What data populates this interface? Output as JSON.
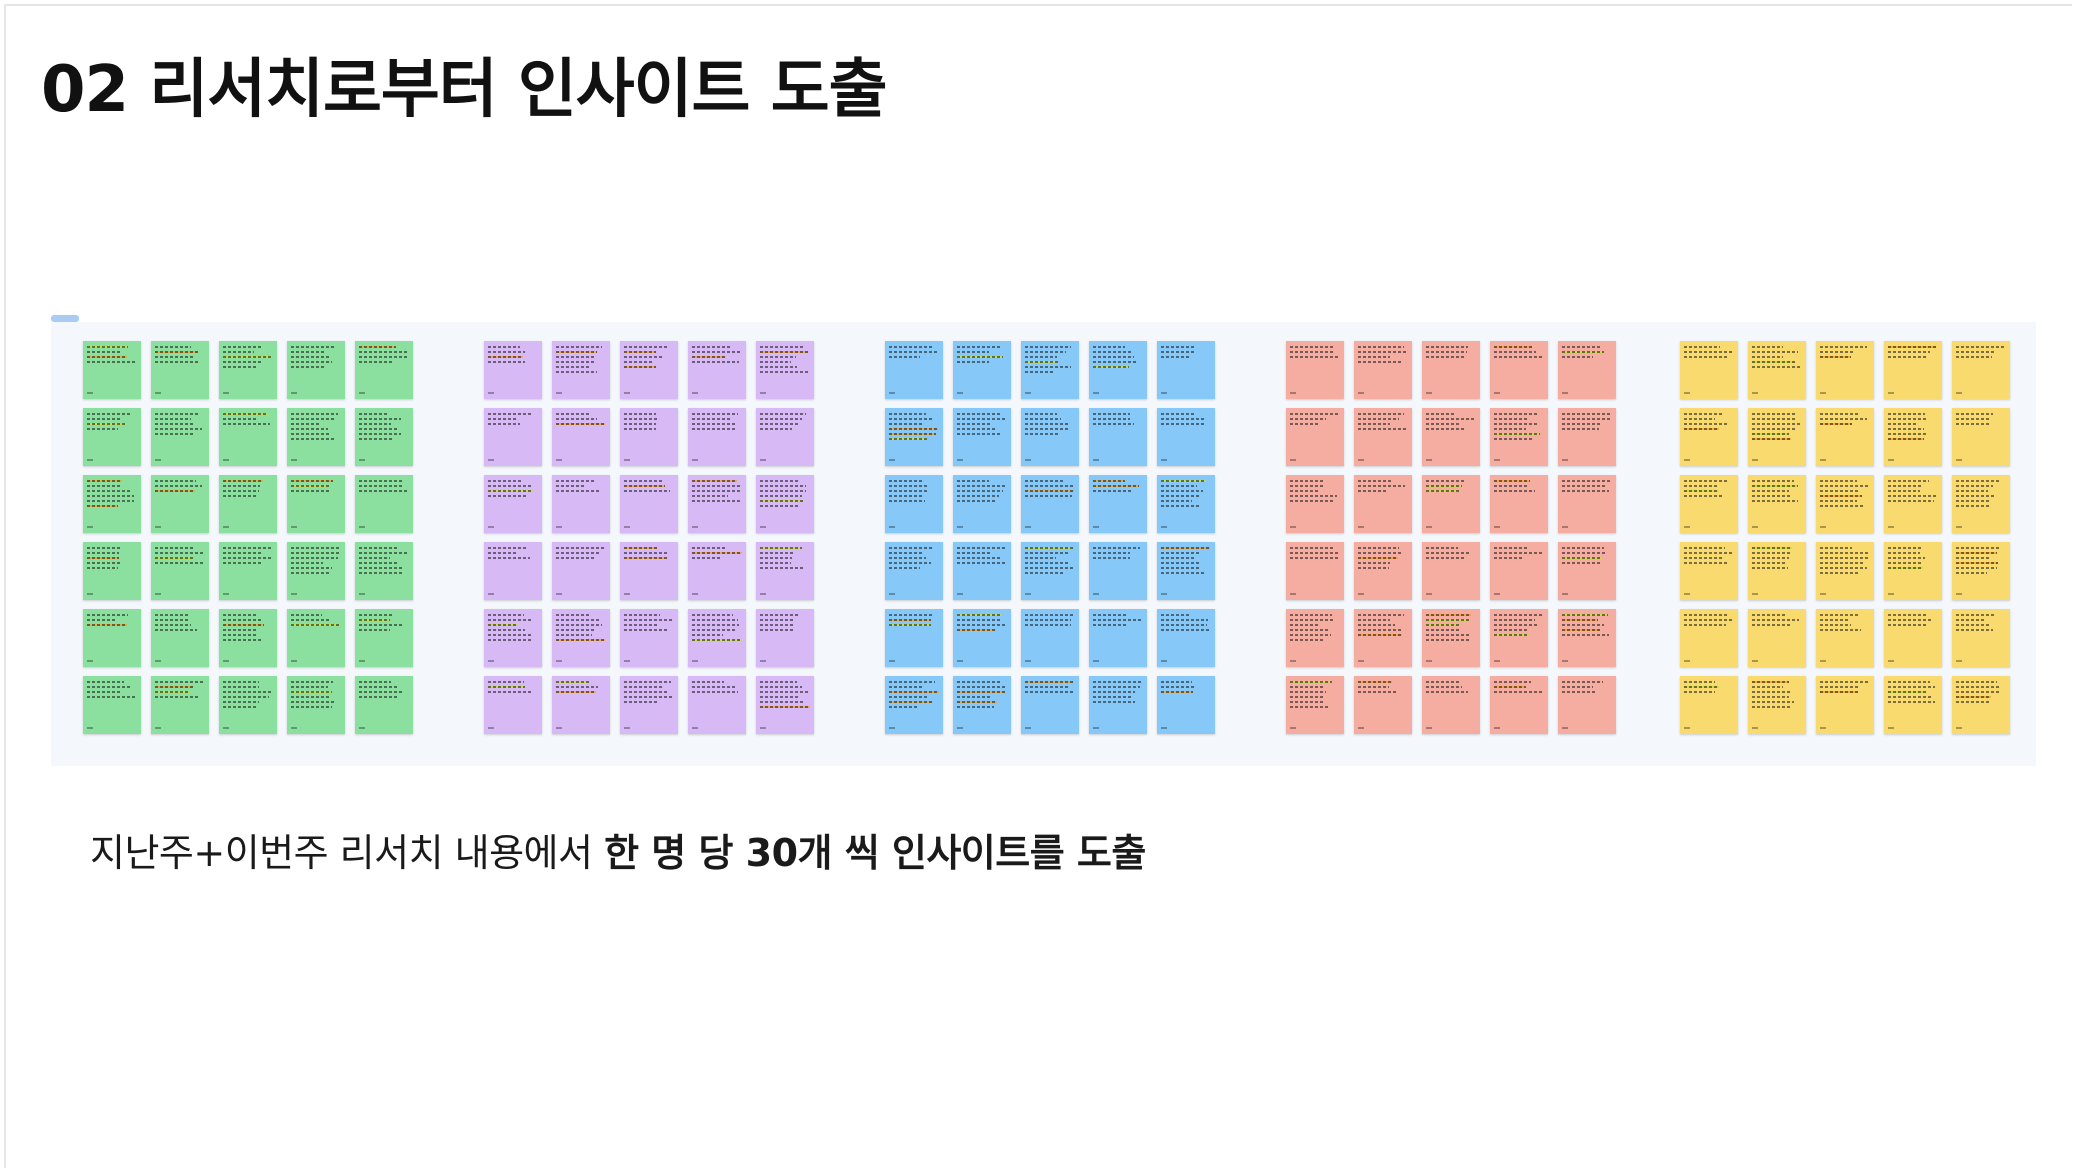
{
  "slide": {
    "title": "02 리서치로부터 인사이트 도출",
    "caption_regular": "지난주+이번주 리서치 내용에서 ",
    "caption_bold": "한 명 당 30개 씩 인사이트를 도출"
  },
  "board": {
    "clusters": [
      {
        "name": "cluster-green",
        "color": "#8bdf9f",
        "rows": 6,
        "cols": 5
      },
      {
        "name": "cluster-purple",
        "color": "#d7b9f6",
        "rows": 6,
        "cols": 5
      },
      {
        "name": "cluster-blue",
        "color": "#86c9f9",
        "rows": 6,
        "cols": 5
      },
      {
        "name": "cluster-salmon",
        "color": "#f4ada0",
        "rows": 6,
        "cols": 5
      },
      {
        "name": "cluster-yellow",
        "color": "#f9da6e",
        "rows": 6,
        "cols": 5
      }
    ],
    "highlight_colors": {
      "orange": "#f5a028",
      "lime": "#c8e13c"
    }
  }
}
